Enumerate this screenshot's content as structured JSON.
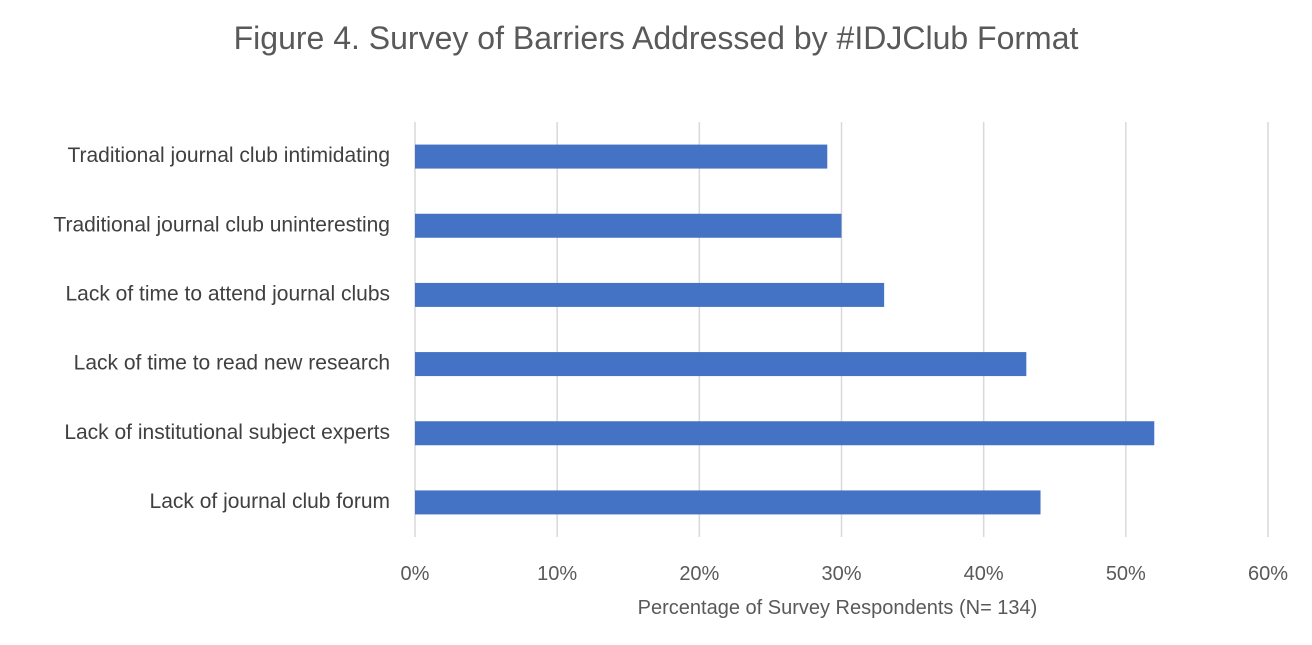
{
  "chart_data": {
    "type": "bar",
    "orientation": "horizontal",
    "title": "Figure 4. Survey of Barriers Addressed by #IDJClub Format",
    "xlabel": "Percentage of Survey Respondents (N= 134)",
    "ylabel": "",
    "categories": [
      "Traditional journal club intimidating",
      "Traditional journal club uninteresting",
      "Lack of time to attend journal clubs",
      "Lack of time to read new research",
      "Lack of institutional subject experts",
      "Lack of journal club forum"
    ],
    "values": [
      29,
      30,
      33,
      43,
      52,
      44
    ],
    "unit": "%",
    "xlim": [
      0,
      60
    ],
    "xticks": [
      0,
      10,
      20,
      30,
      40,
      50,
      60
    ],
    "xtick_labels": [
      "0%",
      "10%",
      "20%",
      "30%",
      "40%",
      "50%",
      "60%"
    ],
    "grid": "vertical",
    "legend": "none",
    "bar_color": "#4472c4"
  }
}
